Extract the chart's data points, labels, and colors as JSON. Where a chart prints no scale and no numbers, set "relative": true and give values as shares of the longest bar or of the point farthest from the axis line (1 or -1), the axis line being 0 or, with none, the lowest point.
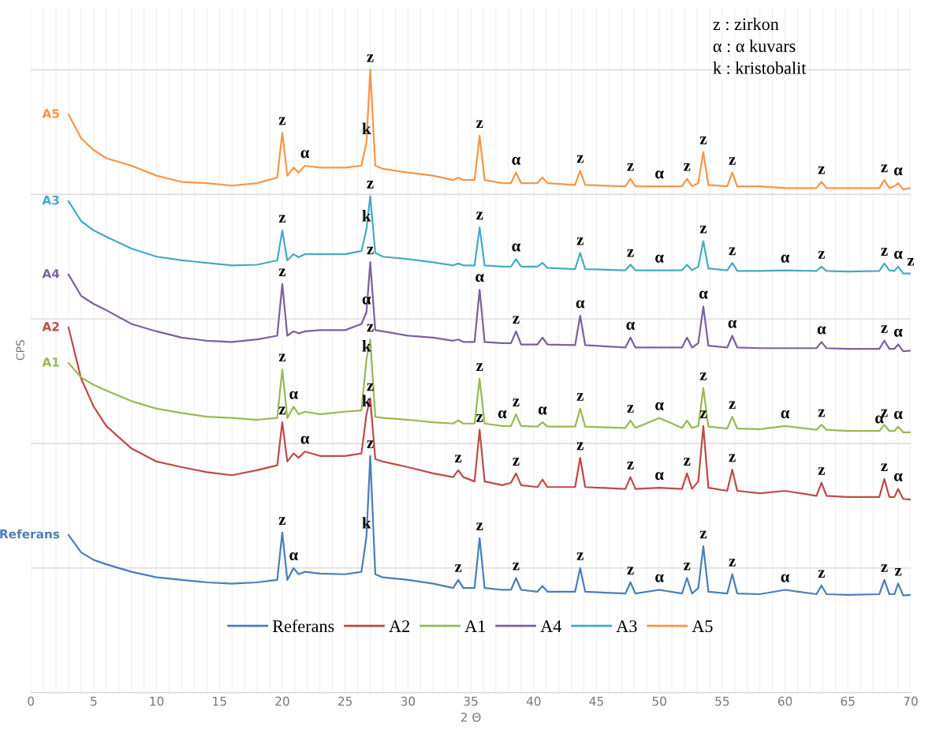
{
  "chart_data": {
    "type": "line",
    "relative": true,
    "xlabel": "2 Θ",
    "ylabel": "CPS",
    "xlim": [
      0,
      70
    ],
    "xticks": [
      0,
      5,
      10,
      15,
      20,
      25,
      30,
      35,
      40,
      45,
      50,
      55,
      60,
      65,
      70
    ],
    "grid": true,
    "legend": "bottom",
    "line_style": "solid",
    "marker": "none",
    "x": [
      3,
      4,
      5,
      6,
      8,
      10,
      12,
      14,
      16,
      18,
      19.6,
      20.0,
      20.4,
      20.9,
      21.3,
      21.8,
      23,
      25,
      26.3,
      26.7,
      27.0,
      27.4,
      28,
      30,
      32,
      33.6,
      34.0,
      34.4,
      35.3,
      35.7,
      36.1,
      37.5,
      38.2,
      38.6,
      39.0,
      40.3,
      40.7,
      41.1,
      43.3,
      43.7,
      44.1,
      47.3,
      47.7,
      48.1,
      50.0,
      51.8,
      52.2,
      52.6,
      53.1,
      53.5,
      53.9,
      55.4,
      55.8,
      56.2,
      58,
      60,
      62.5,
      62.9,
      63.3,
      65,
      67.5,
      67.9,
      68.3,
      68.7,
      69.0,
      69.4,
      70
    ],
    "series": [
      {
        "name": "Referans",
        "color": "#4a7ebb",
        "values": [
          0.253,
          0.225,
          0.213,
          0.206,
          0.194,
          0.185,
          0.181,
          0.177,
          0.175,
          0.177,
          0.181,
          0.257,
          0.181,
          0.2,
          0.19,
          0.194,
          0.191,
          0.19,
          0.194,
          0.251,
          0.38,
          0.19,
          0.185,
          0.181,
          0.175,
          0.168,
          0.181,
          0.168,
          0.168,
          0.248,
          0.168,
          0.165,
          0.165,
          0.184,
          0.165,
          0.162,
          0.171,
          0.162,
          0.162,
          0.2,
          0.162,
          0.159,
          0.177,
          0.159,
          0.165,
          0.159,
          0.184,
          0.159,
          0.168,
          0.235,
          0.162,
          0.159,
          0.19,
          0.159,
          0.158,
          0.165,
          0.158,
          0.172,
          0.158,
          0.157,
          0.158,
          0.181,
          0.158,
          0.158,
          0.175,
          0.156,
          0.157
        ]
      },
      {
        "name": "A2",
        "color": "#be4b48",
        "values": [
          0.586,
          0.504,
          0.459,
          0.428,
          0.392,
          0.371,
          0.362,
          0.354,
          0.349,
          0.357,
          0.365,
          0.434,
          0.371,
          0.384,
          0.377,
          0.387,
          0.38,
          0.38,
          0.384,
          0.447,
          0.472,
          0.375,
          0.371,
          0.362,
          0.352,
          0.346,
          0.357,
          0.346,
          0.339,
          0.422,
          0.339,
          0.333,
          0.337,
          0.352,
          0.333,
          0.33,
          0.342,
          0.33,
          0.33,
          0.377,
          0.33,
          0.327,
          0.346,
          0.327,
          0.329,
          0.327,
          0.352,
          0.327,
          0.339,
          0.428,
          0.329,
          0.324,
          0.358,
          0.324,
          0.32,
          0.324,
          0.316,
          0.337,
          0.316,
          0.314,
          0.314,
          0.343,
          0.314,
          0.314,
          0.327,
          0.311,
          0.31
        ]
      },
      {
        "name": "A1",
        "color": "#98b954",
        "values": [
          0.529,
          0.506,
          0.494,
          0.485,
          0.468,
          0.456,
          0.449,
          0.443,
          0.441,
          0.438,
          0.441,
          0.519,
          0.441,
          0.459,
          0.447,
          0.451,
          0.447,
          0.451,
          0.453,
          0.535,
          0.567,
          0.443,
          0.441,
          0.438,
          0.434,
          0.432,
          0.437,
          0.432,
          0.432,
          0.504,
          0.432,
          0.428,
          0.428,
          0.447,
          0.428,
          0.427,
          0.434,
          0.427,
          0.427,
          0.456,
          0.427,
          0.425,
          0.437,
          0.425,
          0.441,
          0.425,
          0.437,
          0.425,
          0.428,
          0.489,
          0.427,
          0.424,
          0.443,
          0.424,
          0.423,
          0.428,
          0.422,
          0.43,
          0.422,
          0.42,
          0.42,
          0.43,
          0.42,
          0.42,
          0.427,
          0.418,
          0.418
        ]
      },
      {
        "name": "A4",
        "color": "#7d60a0",
        "values": [
          0.671,
          0.637,
          0.624,
          0.614,
          0.592,
          0.58,
          0.57,
          0.565,
          0.563,
          0.567,
          0.573,
          0.656,
          0.573,
          0.58,
          0.577,
          0.58,
          0.582,
          0.582,
          0.592,
          0.611,
          0.691,
          0.582,
          0.58,
          0.573,
          0.57,
          0.565,
          0.567,
          0.563,
          0.563,
          0.647,
          0.563,
          0.561,
          0.561,
          0.58,
          0.559,
          0.559,
          0.57,
          0.559,
          0.558,
          0.605,
          0.558,
          0.554,
          0.57,
          0.554,
          0.554,
          0.554,
          0.57,
          0.554,
          0.561,
          0.62,
          0.557,
          0.554,
          0.573,
          0.554,
          0.553,
          0.553,
          0.553,
          0.563,
          0.553,
          0.552,
          0.552,
          0.565,
          0.552,
          0.552,
          0.559,
          0.548,
          0.549
        ]
      },
      {
        "name": "A3",
        "color": "#46aac5",
        "values": [
          0.789,
          0.757,
          0.742,
          0.732,
          0.713,
          0.7,
          0.694,
          0.69,
          0.686,
          0.687,
          0.694,
          0.742,
          0.694,
          0.704,
          0.699,
          0.704,
          0.704,
          0.704,
          0.709,
          0.744,
          0.797,
          0.706,
          0.7,
          0.696,
          0.691,
          0.686,
          0.689,
          0.686,
          0.686,
          0.747,
          0.686,
          0.684,
          0.684,
          0.696,
          0.684,
          0.684,
          0.69,
          0.682,
          0.68,
          0.706,
          0.68,
          0.678,
          0.687,
          0.678,
          0.678,
          0.678,
          0.687,
          0.678,
          0.684,
          0.725,
          0.681,
          0.678,
          0.69,
          0.677,
          0.677,
          0.678,
          0.677,
          0.684,
          0.677,
          0.676,
          0.677,
          0.689,
          0.678,
          0.677,
          0.684,
          0.673,
          0.673
        ]
      },
      {
        "name": "A5",
        "color": "#f79646",
        "values": [
          0.928,
          0.89,
          0.871,
          0.858,
          0.846,
          0.83,
          0.82,
          0.818,
          0.814,
          0.818,
          0.827,
          0.899,
          0.83,
          0.843,
          0.835,
          0.846,
          0.843,
          0.843,
          0.846,
          0.884,
          1.0,
          0.846,
          0.841,
          0.835,
          0.83,
          0.823,
          0.827,
          0.823,
          0.823,
          0.894,
          0.823,
          0.818,
          0.818,
          0.835,
          0.818,
          0.818,
          0.827,
          0.818,
          0.815,
          0.838,
          0.815,
          0.813,
          0.825,
          0.813,
          0.813,
          0.813,
          0.825,
          0.813,
          0.818,
          0.868,
          0.815,
          0.813,
          0.835,
          0.813,
          0.813,
          0.81,
          0.81,
          0.82,
          0.81,
          0.81,
          0.81,
          0.823,
          0.81,
          0.813,
          0.818,
          0.808,
          0.81
        ]
      }
    ],
    "annotations": [
      "z : zirkon",
      "α : α kuvars",
      "k : kristobalit",
      {
        "text": "z",
        "x": 20.0,
        "y": 0.899
      },
      {
        "text": "α",
        "x": 21.8,
        "y": 0.846
      },
      {
        "text": "k",
        "x": 26.7,
        "y": 0.884
      },
      {
        "text": "z",
        "x": 27.0,
        "y": 1.0
      },
      {
        "text": "z",
        "x": 35.7,
        "y": 0.894
      },
      {
        "text": "α",
        "x": 38.6,
        "y": 0.835
      },
      {
        "text": "z",
        "x": 43.7,
        "y": 0.838
      },
      {
        "text": "z",
        "x": 47.7,
        "y": 0.825
      },
      {
        "text": "α",
        "x": 50.0,
        "y": 0.813
      },
      {
        "text": "z",
        "x": 52.2,
        "y": 0.825
      },
      {
        "text": "z",
        "x": 53.5,
        "y": 0.868
      },
      {
        "text": "z",
        "x": 55.8,
        "y": 0.835
      },
      {
        "text": "z",
        "x": 62.9,
        "y": 0.82
      },
      {
        "text": "z",
        "x": 67.9,
        "y": 0.823
      },
      {
        "text": "α",
        "x": 69.0,
        "y": 0.818
      },
      {
        "text": "z",
        "x": 20.0,
        "y": 0.742
      },
      {
        "text": "k",
        "x": 26.7,
        "y": 0.744
      },
      {
        "text": "z",
        "x": 27.0,
        "y": 0.797
      },
      {
        "text": "z",
        "x": 35.7,
        "y": 0.747
      },
      {
        "text": "α",
        "x": 38.6,
        "y": 0.696
      },
      {
        "text": "z",
        "x": 43.7,
        "y": 0.706
      },
      {
        "text": "z",
        "x": 47.7,
        "y": 0.687
      },
      {
        "text": "α",
        "x": 50.0,
        "y": 0.678
      },
      {
        "text": "z",
        "x": 53.5,
        "y": 0.725
      },
      {
        "text": "z",
        "x": 55.8,
        "y": 0.69
      },
      {
        "text": "α",
        "x": 60,
        "y": 0.678
      },
      {
        "text": "z",
        "x": 62.9,
        "y": 0.684
      },
      {
        "text": "z",
        "x": 67.9,
        "y": 0.689
      },
      {
        "text": "α",
        "x": 69.0,
        "y": 0.684
      },
      {
        "text": "z",
        "x": 70,
        "y": 0.673
      },
      {
        "text": "z",
        "x": 20.0,
        "y": 0.656
      },
      {
        "text": "α",
        "x": 26.7,
        "y": 0.611
      },
      {
        "text": "z",
        "x": 27.0,
        "y": 0.691
      },
      {
        "text": "α",
        "x": 35.7,
        "y": 0.647
      },
      {
        "text": "z",
        "x": 38.6,
        "y": 0.58
      },
      {
        "text": "α",
        "x": 43.7,
        "y": 0.605
      },
      {
        "text": "α",
        "x": 47.7,
        "y": 0.57
      },
      {
        "text": "α",
        "x": 53.5,
        "y": 0.62
      },
      {
        "text": "α",
        "x": 55.8,
        "y": 0.573
      },
      {
        "text": "α",
        "x": 62.9,
        "y": 0.563
      },
      {
        "text": "z",
        "x": 67.9,
        "y": 0.565
      },
      {
        "text": "α",
        "x": 69.0,
        "y": 0.559
      },
      {
        "text": "z",
        "x": 20.0,
        "y": 0.519
      },
      {
        "text": "α",
        "x": 20.9,
        "y": 0.459
      },
      {
        "text": "k",
        "x": 26.7,
        "y": 0.535
      },
      {
        "text": "z",
        "x": 27.0,
        "y": 0.567
      },
      {
        "text": "z",
        "x": 35.7,
        "y": 0.504
      },
      {
        "text": "α",
        "x": 37.5,
        "y": 0.428
      },
      {
        "text": "z",
        "x": 38.6,
        "y": 0.447
      },
      {
        "text": "α",
        "x": 40.7,
        "y": 0.434
      },
      {
        "text": "z",
        "x": 43.7,
        "y": 0.456
      },
      {
        "text": "z",
        "x": 47.7,
        "y": 0.437
      },
      {
        "text": "α",
        "x": 50.0,
        "y": 0.441
      },
      {
        "text": "z",
        "x": 53.5,
        "y": 0.489
      },
      {
        "text": "z",
        "x": 55.8,
        "y": 0.443
      },
      {
        "text": "α",
        "x": 60,
        "y": 0.428
      },
      {
        "text": "z",
        "x": 62.9,
        "y": 0.43
      },
      {
        "text": "α",
        "x": 67.5,
        "y": 0.42
      },
      {
        "text": "z",
        "x": 67.9,
        "y": 0.43
      },
      {
        "text": "α",
        "x": 69.0,
        "y": 0.427
      },
      {
        "text": "z",
        "x": 20.0,
        "y": 0.434
      },
      {
        "text": "α",
        "x": 21.8,
        "y": 0.387
      },
      {
        "text": "k",
        "x": 26.7,
        "y": 0.447
      },
      {
        "text": "z",
        "x": 27.0,
        "y": 0.472
      },
      {
        "text": "z",
        "x": 34.0,
        "y": 0.357
      },
      {
        "text": "z",
        "x": 35.7,
        "y": 0.422
      },
      {
        "text": "z",
        "x": 38.6,
        "y": 0.352
      },
      {
        "text": "z",
        "x": 43.7,
        "y": 0.377
      },
      {
        "text": "z",
        "x": 47.7,
        "y": 0.346
      },
      {
        "text": "α",
        "x": 50.0,
        "y": 0.329
      },
      {
        "text": "z",
        "x": 52.2,
        "y": 0.352
      },
      {
        "text": "z",
        "x": 53.5,
        "y": 0.428
      },
      {
        "text": "z",
        "x": 55.8,
        "y": 0.358
      },
      {
        "text": "z",
        "x": 62.9,
        "y": 0.337
      },
      {
        "text": "z",
        "x": 67.9,
        "y": 0.343
      },
      {
        "text": "α",
        "x": 69.0,
        "y": 0.327
      },
      {
        "text": "z",
        "x": 20.0,
        "y": 0.257
      },
      {
        "text": "α",
        "x": 20.9,
        "y": 0.2
      },
      {
        "text": "k",
        "x": 26.7,
        "y": 0.251
      },
      {
        "text": "z",
        "x": 27.0,
        "y": 0.38
      },
      {
        "text": "z",
        "x": 34.0,
        "y": 0.181
      },
      {
        "text": "z",
        "x": 35.7,
        "y": 0.248
      },
      {
        "text": "z",
        "x": 38.6,
        "y": 0.184
      },
      {
        "text": "z",
        "x": 43.7,
        "y": 0.2
      },
      {
        "text": "z",
        "x": 47.7,
        "y": 0.177
      },
      {
        "text": "α",
        "x": 50.0,
        "y": 0.165
      },
      {
        "text": "z",
        "x": 52.2,
        "y": 0.184
      },
      {
        "text": "z",
        "x": 53.5,
        "y": 0.235
      },
      {
        "text": "z",
        "x": 55.8,
        "y": 0.19
      },
      {
        "text": "α",
        "x": 60,
        "y": 0.165
      },
      {
        "text": "z",
        "x": 62.9,
        "y": 0.172
      },
      {
        "text": "z",
        "x": 67.9,
        "y": 0.181
      },
      {
        "text": "z",
        "x": 69.0,
        "y": 0.175
      }
    ]
  }
}
